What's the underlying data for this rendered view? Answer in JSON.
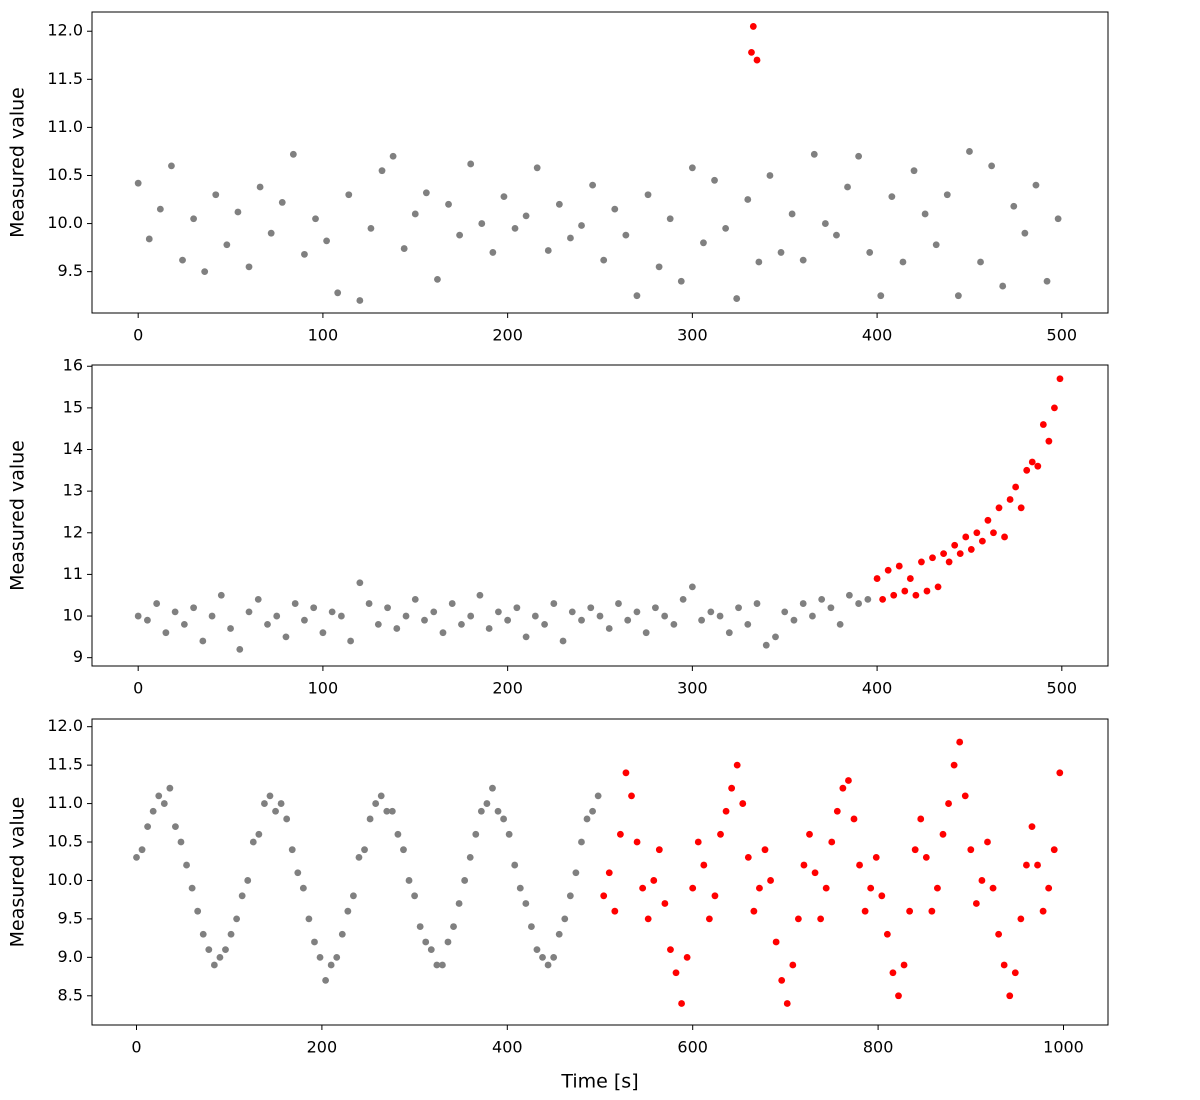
{
  "chart_data": [
    {
      "type": "scatter",
      "ylabel": "Measured value",
      "xlim": [
        -25,
        525
      ],
      "ylim": [
        9.07,
        12.2
      ],
      "xticks": [
        0,
        100,
        200,
        300,
        400,
        500
      ],
      "yticks": [
        9.5,
        {
          "value": 10,
          "label": "10.0"
        },
        10.5,
        {
          "value": 11,
          "label": "11.0"
        },
        11.5,
        {
          "value": 12,
          "label": "12.0"
        }
      ],
      "series": [
        {
          "color": "#808080",
          "x": [
            0,
            6,
            12,
            18,
            24,
            30,
            36,
            42,
            48,
            54,
            60,
            66,
            72,
            78,
            84,
            90,
            96,
            102,
            108,
            114,
            120,
            126,
            132,
            138,
            144,
            150,
            156,
            162,
            168,
            174,
            180,
            186,
            192,
            198,
            204,
            210,
            216,
            222,
            228,
            234,
            240,
            246,
            252,
            258,
            264,
            270,
            276,
            282,
            288,
            294,
            300,
            306,
            312,
            318,
            324,
            330,
            336,
            342,
            348,
            354,
            360,
            366,
            372,
            378,
            384,
            390,
            396,
            402,
            408,
            414,
            420,
            426,
            432,
            438,
            444,
            450,
            456,
            462,
            468,
            474,
            480,
            486,
            492,
            498
          ],
          "values": [
            10.42,
            9.84,
            10.15,
            10.6,
            9.62,
            10.05,
            9.5,
            10.3,
            9.78,
            10.12,
            9.55,
            10.38,
            9.9,
            10.22,
            10.72,
            9.68,
            10.05,
            9.82,
            9.28,
            10.3,
            9.2,
            9.95,
            10.55,
            10.7,
            9.74,
            10.1,
            10.32,
            9.42,
            10.2,
            9.88,
            10.62,
            10.0,
            9.7,
            10.28,
            9.95,
            10.08,
            10.58,
            9.72,
            10.2,
            9.85,
            9.98,
            10.4,
            9.62,
            10.15,
            9.88,
            9.25,
            10.3,
            9.55,
            10.05,
            9.4,
            10.58,
            9.8,
            10.45,
            9.95,
            9.22,
            10.25,
            9.6,
            10.5,
            9.7,
            10.1,
            9.62,
            10.72,
            10.0,
            9.88,
            10.38,
            10.7,
            9.7,
            9.25,
            10.28,
            9.6,
            10.55,
            10.1,
            9.78,
            10.3,
            9.25,
            10.75,
            9.6,
            10.6,
            9.35,
            10.18,
            9.9,
            10.4,
            9.4,
            10.05
          ]
        },
        {
          "color": "#ff0000",
          "x": [
            332,
            333,
            335
          ],
          "values": [
            11.78,
            12.05,
            11.7
          ]
        }
      ]
    },
    {
      "type": "scatter",
      "ylabel": "Measured value",
      "xlim": [
        -25,
        525
      ],
      "ylim": [
        8.8,
        16.03
      ],
      "xticks": [
        0,
        100,
        200,
        300,
        400,
        500
      ],
      "yticks": [
        9,
        10,
        11,
        12,
        13,
        14,
        15,
        16
      ],
      "series": [
        {
          "color": "#808080",
          "x": [
            0,
            5,
            10,
            15,
            20,
            25,
            30,
            35,
            40,
            45,
            50,
            55,
            60,
            65,
            70,
            75,
            80,
            85,
            90,
            95,
            100,
            105,
            110,
            115,
            120,
            125,
            130,
            135,
            140,
            145,
            150,
            155,
            160,
            165,
            170,
            175,
            180,
            185,
            190,
            195,
            200,
            205,
            210,
            215,
            220,
            225,
            230,
            235,
            240,
            245,
            250,
            255,
            260,
            265,
            270,
            275,
            280,
            285,
            290,
            295,
            300,
            305,
            310,
            315,
            320,
            325,
            330,
            335,
            340,
            345,
            350,
            355,
            360,
            365,
            370,
            375,
            380,
            385,
            390,
            395
          ],
          "values": [
            10.0,
            9.9,
            10.3,
            9.6,
            10.1,
            9.8,
            10.2,
            9.4,
            10.0,
            10.5,
            9.7,
            9.2,
            10.1,
            10.4,
            9.8,
            10.0,
            9.5,
            10.3,
            9.9,
            10.2,
            9.6,
            10.1,
            10.0,
            9.4,
            10.8,
            10.3,
            9.8,
            10.2,
            9.7,
            10.0,
            10.4,
            9.9,
            10.1,
            9.6,
            10.3,
            9.8,
            10.0,
            10.5,
            9.7,
            10.1,
            9.9,
            10.2,
            9.5,
            10.0,
            9.8,
            10.3,
            9.4,
            10.1,
            9.9,
            10.2,
            10.0,
            9.7,
            10.3,
            9.9,
            10.1,
            9.6,
            10.2,
            10.0,
            9.8,
            10.4,
            10.7,
            9.9,
            10.1,
            10.0,
            9.6,
            10.2,
            9.8,
            10.3,
            9.3,
            9.5,
            10.1,
            9.9,
            10.3,
            10.0,
            10.4,
            10.2,
            9.8,
            10.5,
            10.3,
            10.4
          ]
        },
        {
          "color": "#ff0000",
          "x": [
            400,
            403,
            406,
            409,
            412,
            415,
            418,
            421,
            424,
            427,
            430,
            433,
            436,
            439,
            442,
            445,
            448,
            451,
            454,
            457,
            460,
            463,
            466,
            469,
            472,
            475,
            478,
            481,
            484,
            487,
            490,
            493,
            496,
            499
          ],
          "values": [
            10.9,
            10.4,
            11.1,
            10.5,
            11.2,
            10.6,
            10.9,
            10.5,
            11.3,
            10.6,
            11.4,
            10.7,
            11.5,
            11.3,
            11.7,
            11.5,
            11.9,
            11.6,
            12.0,
            11.8,
            12.3,
            12.0,
            12.6,
            11.9,
            12.8,
            13.1,
            12.6,
            13.5,
            13.7,
            13.6,
            14.6,
            14.2,
            15.0,
            15.7
          ]
        }
      ]
    },
    {
      "type": "scatter",
      "ylabel": "Measured value",
      "xlabel": "Time [s]",
      "xlim": [
        -48,
        1048
      ],
      "ylim": [
        8.12,
        12.1
      ],
      "xticks": [
        0,
        200,
        400,
        600,
        800,
        1000
      ],
      "yticks": [
        8.5,
        {
          "value": 9,
          "label": "9.0"
        },
        9.5,
        {
          "value": 10,
          "label": "10.0"
        },
        10.5,
        {
          "value": 11,
          "label": "11.0"
        },
        11.5,
        {
          "value": 12,
          "label": "12.0"
        }
      ],
      "series": [
        {
          "color": "#808080",
          "x": [
            0,
            6,
            12,
            18,
            24,
            30,
            36,
            42,
            48,
            54,
            60,
            66,
            72,
            78,
            84,
            90,
            96,
            102,
            108,
            114,
            120,
            126,
            132,
            138,
            144,
            150,
            156,
            162,
            168,
            174,
            180,
            186,
            192,
            198,
            204,
            210,
            216,
            222,
            228,
            234,
            240,
            246,
            252,
            258,
            264,
            270,
            276,
            282,
            288,
            294,
            300,
            306,
            312,
            318,
            324,
            330,
            336,
            342,
            348,
            354,
            360,
            366,
            372,
            378,
            384,
            390,
            396,
            402,
            408,
            414,
            420,
            426,
            432,
            438,
            444,
            450,
            456,
            462,
            468,
            474,
            480,
            486,
            492,
            498
          ],
          "values": [
            10.3,
            10.4,
            10.7,
            10.9,
            11.1,
            11.0,
            11.2,
            10.7,
            10.5,
            10.2,
            9.9,
            9.6,
            9.3,
            9.1,
            8.9,
            9.0,
            9.1,
            9.3,
            9.5,
            9.8,
            10.0,
            10.5,
            10.6,
            11.0,
            11.1,
            10.9,
            11.0,
            10.8,
            10.4,
            10.1,
            9.9,
            9.5,
            9.2,
            9.0,
            8.7,
            8.9,
            9.0,
            9.3,
            9.6,
            9.8,
            10.3,
            10.4,
            10.8,
            11.0,
            11.1,
            10.9,
            10.9,
            10.6,
            10.4,
            10.0,
            9.8,
            9.4,
            9.2,
            9.1,
            8.9,
            8.9,
            9.2,
            9.4,
            9.7,
            10.0,
            10.3,
            10.6,
            10.9,
            11.0,
            11.2,
            10.9,
            10.8,
            10.6,
            10.2,
            9.9,
            9.7,
            9.4,
            9.1,
            9.0,
            8.9,
            9.0,
            9.3,
            9.5,
            9.8,
            10.1,
            10.5,
            10.8,
            10.9,
            11.1
          ]
        },
        {
          "color": "#ff0000",
          "x": [
            504,
            510,
            516,
            522,
            528,
            534,
            540,
            546,
            552,
            558,
            564,
            570,
            576,
            582,
            588,
            594,
            600,
            606,
            612,
            618,
            624,
            630,
            636,
            642,
            648,
            654,
            660,
            666,
            672,
            678,
            684,
            690,
            696,
            702,
            708,
            714,
            720,
            726,
            732,
            738,
            744,
            750,
            756,
            762,
            768,
            774,
            780,
            786,
            792,
            798,
            804,
            810,
            816,
            822,
            828,
            834,
            840,
            846,
            852,
            858,
            864,
            870,
            876,
            882,
            888,
            894,
            900,
            906,
            912,
            918,
            924,
            930,
            936,
            942,
            948,
            954,
            960,
            966,
            972,
            978,
            984,
            990,
            996
          ],
          "values": [
            9.8,
            10.1,
            9.6,
            10.6,
            11.4,
            11.1,
            10.5,
            9.9,
            9.5,
            10.0,
            10.4,
            9.7,
            9.1,
            8.8,
            8.4,
            9.0,
            9.9,
            10.5,
            10.2,
            9.5,
            9.8,
            10.6,
            10.9,
            11.2,
            11.5,
            11.0,
            10.3,
            9.6,
            9.9,
            10.4,
            10.0,
            9.2,
            8.7,
            8.4,
            8.9,
            9.5,
            10.2,
            10.6,
            10.1,
            9.5,
            9.9,
            10.5,
            10.9,
            11.2,
            11.3,
            10.8,
            10.2,
            9.6,
            9.9,
            10.3,
            9.8,
            9.3,
            8.8,
            8.5,
            8.9,
            9.6,
            10.4,
            10.8,
            10.3,
            9.6,
            9.9,
            10.6,
            11.0,
            11.5,
            11.8,
            11.1,
            10.4,
            9.7,
            10.0,
            10.5,
            9.9,
            9.3,
            8.9,
            8.5,
            8.8,
            9.5,
            10.2,
            10.7,
            10.2,
            9.6,
            9.9,
            10.4,
            11.4
          ]
        }
      ]
    }
  ]
}
